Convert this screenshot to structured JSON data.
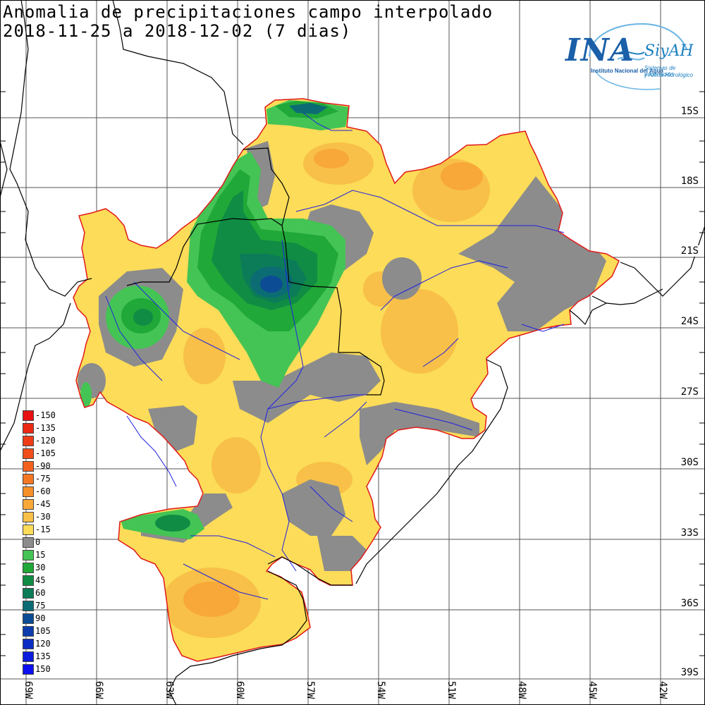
{
  "title": {
    "line1": "Anomalia de precipitaciones campo interpolado",
    "line2": "2018-11-25 a 2018-12-02 (7 dias)"
  },
  "logo": {
    "main": "INA",
    "secondary": "SiyAH",
    "institution": "Instituto Nacional del Agua",
    "sub_line1": "Sistemas de información",
    "sub_line2": "y Alerta Hidrológico"
  },
  "latitude_labels": [
    "15S",
    "18S",
    "21S",
    "24S",
    "27S",
    "30S",
    "33S",
    "36S",
    "39S"
  ],
  "longitude_labels": [
    "69W",
    "66W",
    "63W",
    "60W",
    "57W",
    "54W",
    "51W",
    "48W",
    "45W",
    "42W"
  ],
  "legend": [
    {
      "label": "-150",
      "color": "#e81010"
    },
    {
      "label": "-135",
      "color": "#ec2a14"
    },
    {
      "label": "-120",
      "color": "#ee3c16"
    },
    {
      "label": "-105",
      "color": "#f04e1a"
    },
    {
      "label": "-90",
      "color": "#f2621e"
    },
    {
      "label": "-75",
      "color": "#f47824"
    },
    {
      "label": "-60",
      "color": "#f69028"
    },
    {
      "label": "-45",
      "color": "#f8a838"
    },
    {
      "label": "-30",
      "color": "#f8c048"
    },
    {
      "label": "-15",
      "color": "#fcdc58"
    },
    {
      "label": "0",
      "color": "#8c8c8c"
    },
    {
      "label": "15",
      "color": "#44c454"
    },
    {
      "label": "30",
      "color": "#20a838"
    },
    {
      "label": "45",
      "color": "#108c44"
    },
    {
      "label": "60",
      "color": "#0c7c58"
    },
    {
      "label": "75",
      "color": "#0c6c74"
    },
    {
      "label": "90",
      "color": "#0c4c94"
    },
    {
      "label": "105",
      "color": "#0c3cac"
    },
    {
      "label": "120",
      "color": "#0c2cc4"
    },
    {
      "label": "135",
      "color": "#0c1cdc"
    },
    {
      "label": "150",
      "color": "#0c10f0"
    }
  ],
  "colors": {
    "basin_border": "#e01818",
    "rivers": "#2020e0",
    "coast": "#000000",
    "grid": "#555555"
  }
}
